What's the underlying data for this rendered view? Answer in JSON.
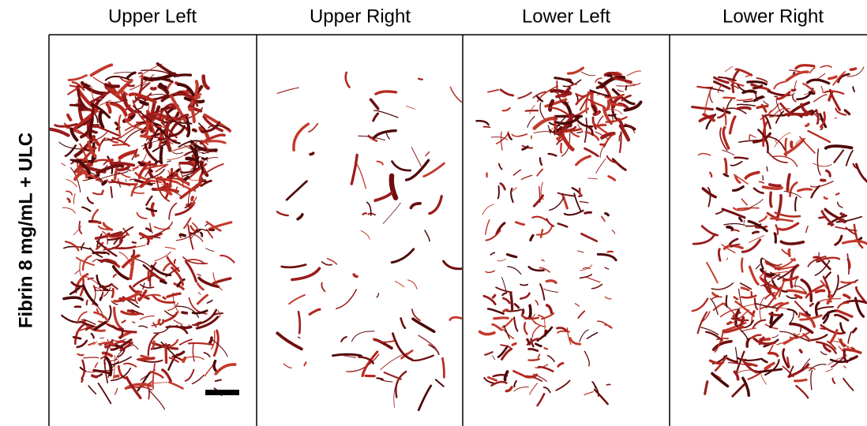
{
  "row_label": "Fibrin 8 mg/mL + ULC",
  "panels": [
    {
      "title": "Upper Left"
    },
    {
      "title": "Upper Right"
    },
    {
      "title": "Lower Left"
    },
    {
      "title": "Lower Right"
    }
  ]
}
